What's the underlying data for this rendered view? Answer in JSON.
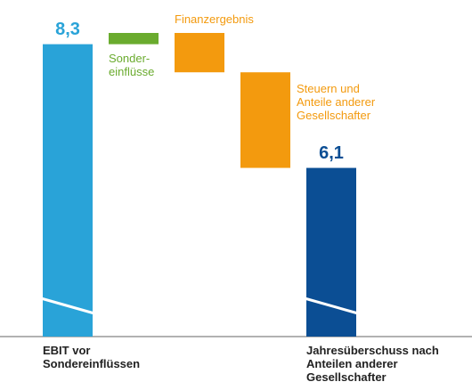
{
  "chart_data": {
    "type": "waterfall",
    "categories": [
      "EBIT vor\nSondereinflüssen",
      "Sonder-\neinflüsse",
      "Finanzergebnis",
      "Steuern und\nAnteile anderer\nGesellschafter",
      "Jahresüberschuss nach\nAnteilen anderer\nGesellschafter"
    ],
    "values": [
      8.3,
      0.2,
      -0.7,
      -1.7,
      6.1
    ],
    "value_labels": [
      "8,3",
      null,
      null,
      null,
      "6,1"
    ],
    "kinds": [
      "total",
      "delta",
      "delta",
      "delta",
      "total"
    ],
    "colors": [
      "#29a3d8",
      "#6aab2e",
      "#f39a0e",
      "#f39a0e",
      "#0b4e94"
    ],
    "ylim": [
      3.1,
      8.5
    ],
    "axis_break": true
  }
}
